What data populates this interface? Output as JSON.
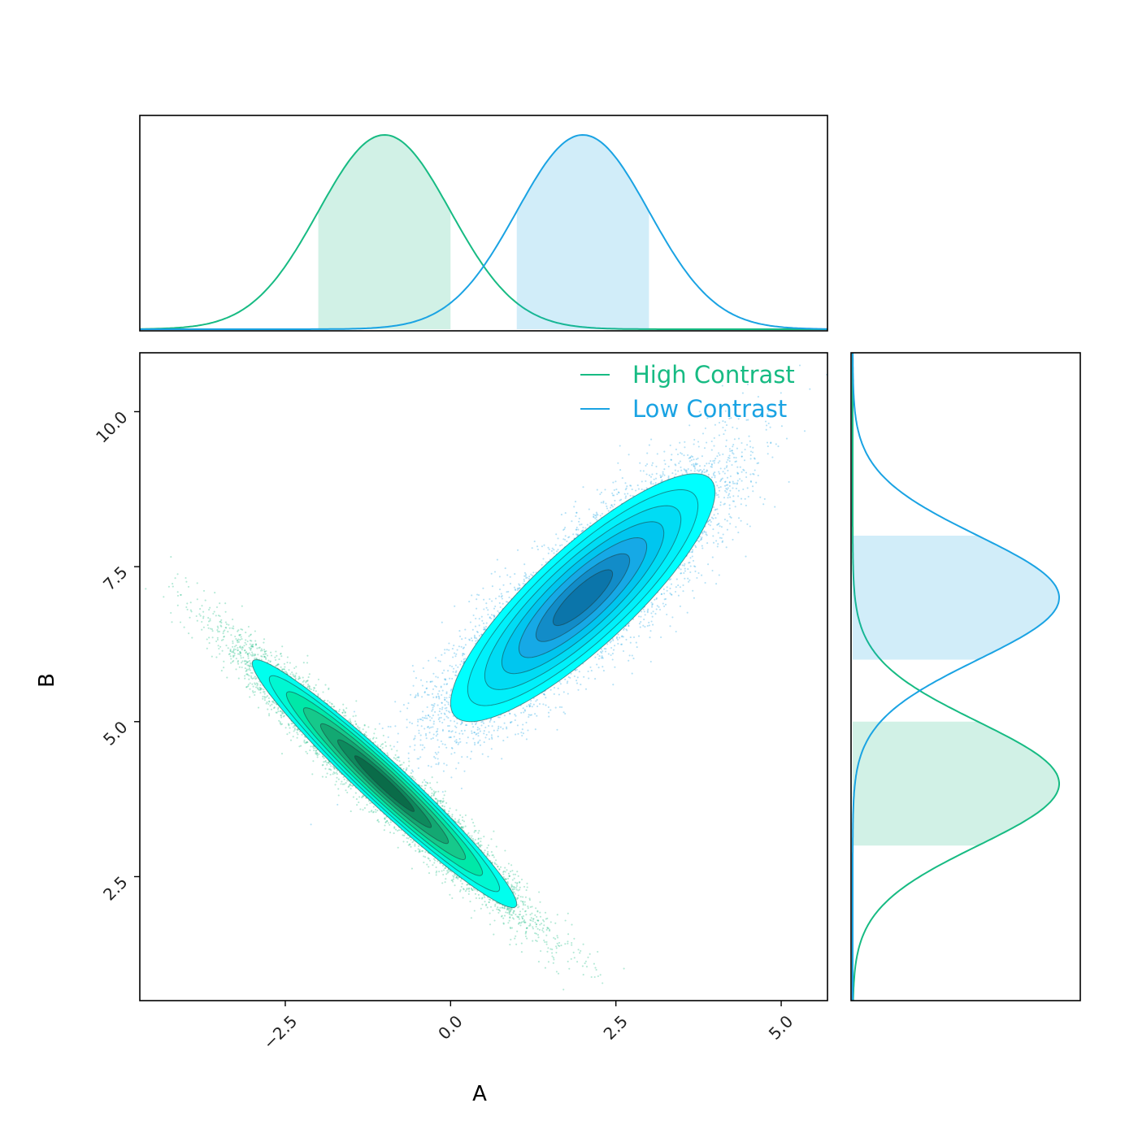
{
  "chart_data": {
    "type": "scatter",
    "title": "",
    "xlabel": "A",
    "ylabel": "B",
    "xlim": [
      -4.7,
      5.7
    ],
    "ylim": [
      0.5,
      10.95
    ],
    "xticks": [
      -2.5,
      0.0,
      2.5,
      5.0
    ],
    "yticks": [
      2.5,
      5.0,
      7.5,
      10.0
    ],
    "xtick_labels": [
      "−2.5",
      "0.0",
      "2.5",
      "5.0"
    ],
    "ytick_labels": [
      "2.5",
      "5.0",
      "7.5",
      "10.0"
    ],
    "legend_position": "top-right",
    "series": [
      {
        "name": "High Contrast",
        "color": "#17bb83",
        "contour_fills": [
          "#00ffee",
          "#00f7d2",
          "#00e8a8",
          "#16c98b",
          "#13a872",
          "#0e8a5d",
          "#0a6c49"
        ],
        "mean": [
          -1.0,
          4.0
        ],
        "std": [
          1.0,
          1.0
        ],
        "correlation": -0.97,
        "n_points": 10000,
        "marginal_x_interval": [
          -2.0,
          0.0
        ],
        "marginal_y_interval": [
          3.0,
          5.0
        ]
      },
      {
        "name": "Low Contrast",
        "color": "#1aa3e3",
        "contour_fills": [
          "#00ffff",
          "#00f0fa",
          "#00dcf4",
          "#00c6ef",
          "#16a9e6",
          "#128cc8",
          "#0b75aa"
        ],
        "mean": [
          2.0,
          7.0
        ],
        "std": [
          1.0,
          1.0
        ],
        "correlation": 0.85,
        "n_points": 10000,
        "marginal_x_interval": [
          1.0,
          3.0
        ],
        "marginal_y_interval": [
          6.0,
          8.0
        ]
      }
    ]
  }
}
